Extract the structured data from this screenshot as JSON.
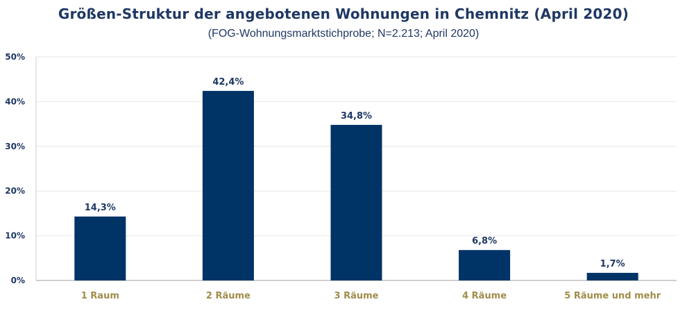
{
  "chart_data": {
    "type": "bar",
    "title": "Größen-Struktur der angebotenen Wohnungen in Chemnitz (April 2020)",
    "subtitle": "(FOG-Wohnungsmarktstichprobe; N=2.213; April 2020)",
    "categories": [
      "1 Raum",
      "2 Räume",
      "3 Räume",
      "4 Räume",
      "5 Räume und mehr"
    ],
    "values": [
      14.3,
      42.4,
      34.8,
      6.8,
      1.7
    ],
    "value_labels": [
      "14,3%",
      "42,4%",
      "34,8%",
      "6,8%",
      "1,7%"
    ],
    "xlabel": "",
    "ylabel": "",
    "ylim": [
      0,
      50
    ],
    "yticks": [
      0,
      10,
      20,
      30,
      40,
      50
    ],
    "ytick_labels": [
      "0%",
      "10%",
      "20%",
      "30%",
      "40%",
      "50%"
    ],
    "grid": true,
    "legend": "none",
    "colors": {
      "bar": "#003366",
      "title": "#1f3864",
      "category_label": "#a08c4a",
      "grid": "#e6e6e6"
    }
  }
}
